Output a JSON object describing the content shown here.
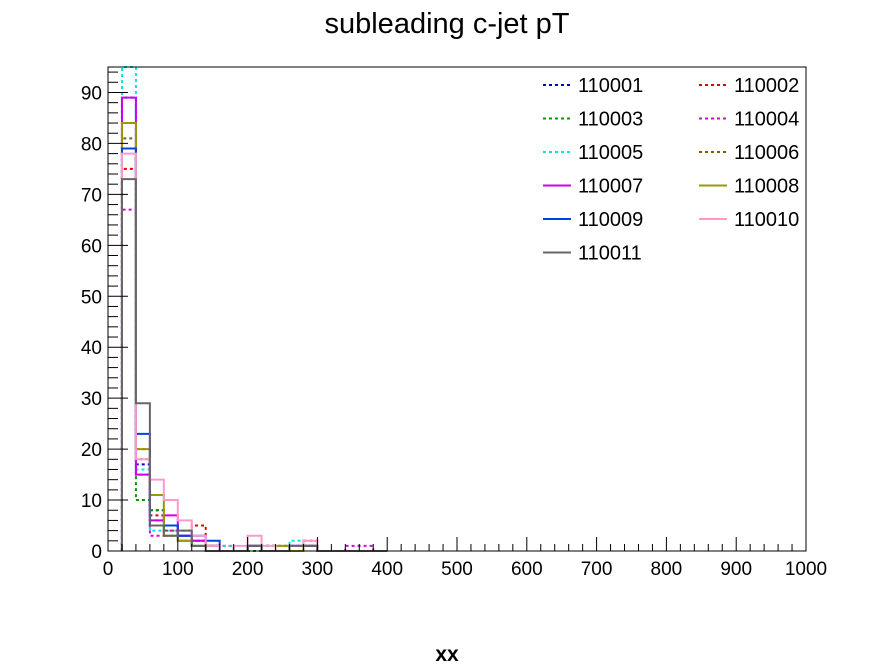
{
  "chart_data": {
    "type": "histogram",
    "title": "subleading c-jet pT",
    "xlabel": "xx",
    "ylabel": "",
    "xlim": [
      0,
      1000
    ],
    "ylim": [
      0,
      95
    ],
    "x_major_ticks": [
      0,
      100,
      200,
      300,
      400,
      500,
      600,
      700,
      800,
      900,
      1000
    ],
    "y_major_ticks": [
      0,
      10,
      20,
      30,
      40,
      50,
      60,
      70,
      80,
      90
    ],
    "bin_edges": [
      20,
      40,
      60,
      80,
      100,
      120,
      140,
      160,
      180,
      200,
      220,
      240,
      260,
      280,
      300,
      320,
      340,
      360,
      380,
      400
    ],
    "legend_columns": 2,
    "legend_position": "top-right",
    "series": [
      {
        "name": "110001",
        "color": "#0000cc",
        "dash": "dotted",
        "values": [
          89,
          17,
          8,
          5,
          3,
          2,
          1,
          0,
          0,
          1,
          1,
          0,
          1,
          1,
          0,
          0,
          0,
          0,
          0
        ]
      },
      {
        "name": "110002",
        "color": "#e60000",
        "dash": "dotted",
        "values": [
          75,
          18,
          7,
          5,
          4,
          5,
          1,
          1,
          0,
          1,
          1,
          1,
          1,
          2,
          0,
          0,
          0,
          0,
          0
        ]
      },
      {
        "name": "110003",
        "color": "#009900",
        "dash": "dotted",
        "values": [
          79,
          10,
          8,
          4,
          2,
          1,
          1,
          0,
          0,
          0,
          1,
          0,
          0,
          1,
          0,
          0,
          0,
          0,
          0
        ]
      },
      {
        "name": "110004",
        "color": "#dd00dd",
        "dash": "dotted",
        "values": [
          67,
          15,
          3,
          4,
          2,
          2,
          1,
          0,
          0,
          1,
          0,
          0,
          1,
          1,
          0,
          0,
          1,
          1,
          0
        ]
      },
      {
        "name": "110005",
        "color": "#00e5e5",
        "dash": "dotted",
        "values": [
          95,
          16,
          4,
          5,
          2,
          1,
          1,
          1,
          0,
          1,
          1,
          1,
          2,
          1,
          0,
          0,
          0,
          0,
          0
        ]
      },
      {
        "name": "110006",
        "color": "#8b5a00",
        "dash": "dotted",
        "values": [
          81,
          20,
          6,
          3,
          3,
          1,
          1,
          0,
          0,
          1,
          0,
          1,
          0,
          1,
          0,
          0,
          0,
          0,
          0
        ]
      },
      {
        "name": "110007",
        "color": "#cc00ee",
        "dash": "solid",
        "values": [
          89,
          15,
          6,
          7,
          3,
          2,
          1,
          0,
          0,
          1,
          0,
          0,
          1,
          1,
          0,
          0,
          0,
          0,
          0
        ]
      },
      {
        "name": "110008",
        "color": "#999900",
        "dash": "solid",
        "values": [
          84,
          20,
          11,
          3,
          2,
          1,
          1,
          0,
          0,
          1,
          0,
          1,
          0,
          1,
          0,
          0,
          0,
          0,
          0
        ]
      },
      {
        "name": "110009",
        "color": "#0044dd",
        "dash": "solid",
        "values": [
          79,
          23,
          5,
          5,
          3,
          3,
          2,
          0,
          0,
          1,
          0,
          0,
          1,
          1,
          0,
          0,
          0,
          0,
          0
        ]
      },
      {
        "name": "110010",
        "color": "#ff99cc",
        "dash": "solid",
        "values": [
          78,
          18,
          14,
          10,
          6,
          3,
          1,
          0,
          1,
          3,
          1,
          0,
          1,
          2,
          0,
          0,
          0,
          0,
          0
        ]
      },
      {
        "name": "110011",
        "color": "#666666",
        "dash": "solid",
        "values": [
          73,
          29,
          5,
          3,
          4,
          1,
          0,
          0,
          0,
          1,
          0,
          0,
          1,
          1,
          0,
          0,
          0,
          0,
          0
        ]
      }
    ]
  }
}
